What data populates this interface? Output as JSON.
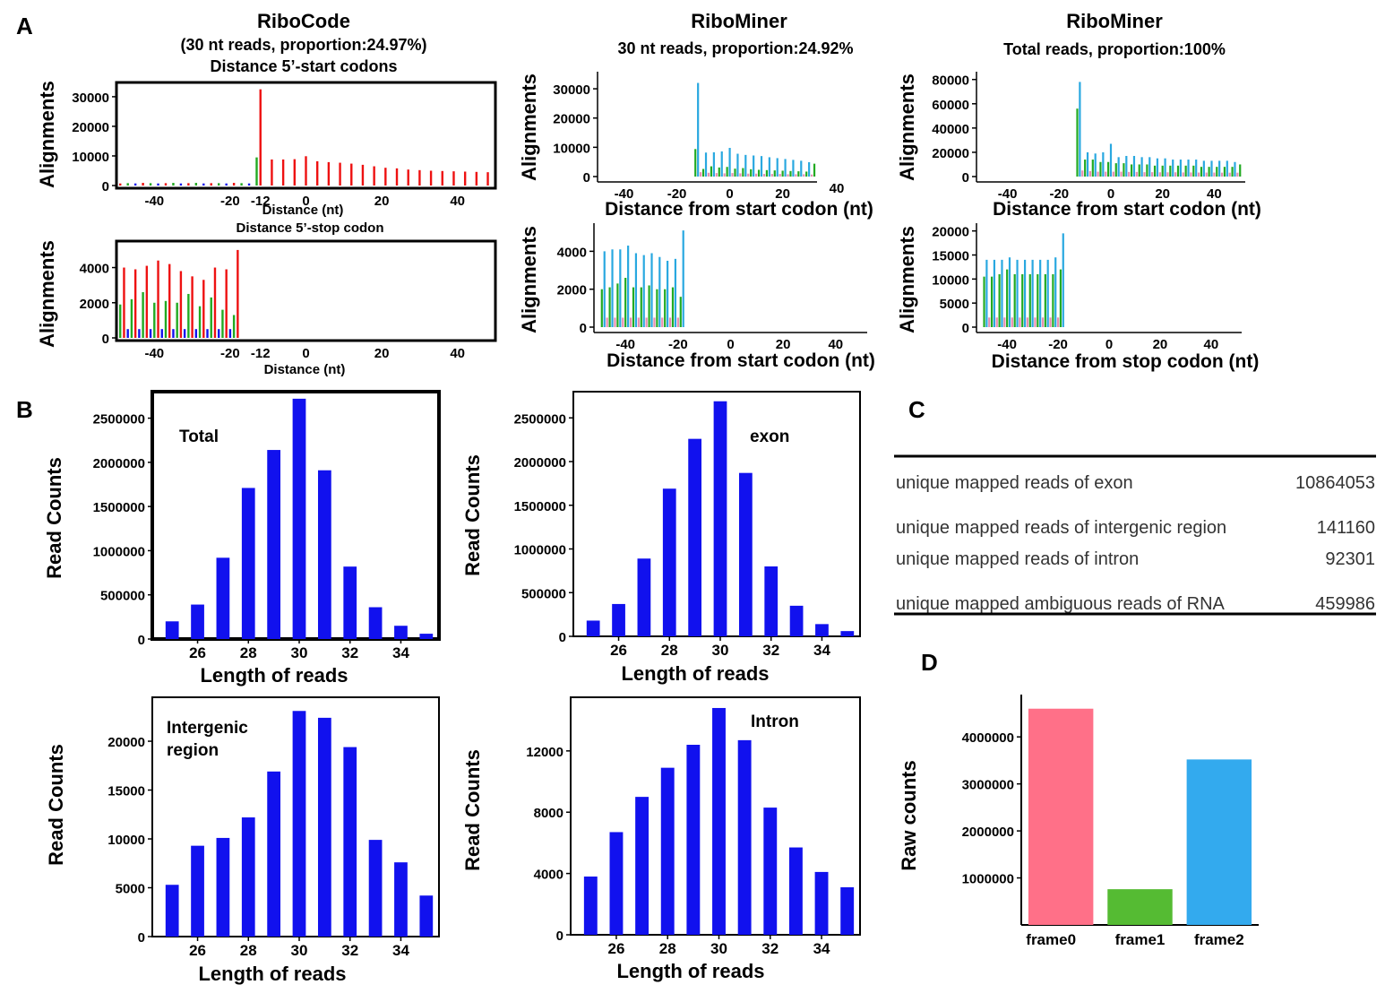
{
  "panel_letters": {
    "A": "A",
    "B": "B",
    "C": "C",
    "D": "D"
  },
  "colors": {
    "red": "#ee1111",
    "green": "#22aa22",
    "blue": "#1111ee",
    "cyan": "#29a8e0",
    "pink": "#e88fb0",
    "bar_blue": "#1111ee",
    "frame0": "#ff7088",
    "frame1": "#55bb33",
    "frame2": "#33aaee"
  },
  "panelA": {
    "ribocode": {
      "title": "RiboCode",
      "subtitle1": "(30 nt reads, proportion:24.97%)",
      "subtitle2": "Distance 5’-start codons",
      "bottom_subtitle": "Distance 5’-stop codon",
      "xlabel": "Distance (nt)",
      "ylabel": "Alignments"
    },
    "riboMinerA": {
      "title": "RiboMiner",
      "subtitle": "30 nt reads, proportion:24.92%",
      "xlabel_top": "Distance from start codon (nt)",
      "xlabel_bottom": "Distance from start codon (nt)",
      "ylabel": "Alignments"
    },
    "riboMinerB": {
      "title": "RiboMiner",
      "subtitle": "Total reads, proportion:100%",
      "xlabel_top": "Distance from start codon (nt)",
      "xlabel_bottom": "Distance from stop codon (nt)",
      "ylabel": "Alignments"
    }
  },
  "chart_data": [
    {
      "id": "A1",
      "type": "bar",
      "xlabel": "Distance (nt)",
      "ylabel": "Alignments",
      "xlim": [
        -50,
        50
      ],
      "ylim": [
        0,
        33000
      ],
      "xticks": [
        -40,
        -20,
        -12,
        0,
        20,
        40
      ],
      "yticks": [
        0,
        10000,
        20000,
        30000
      ],
      "frame_colors": [
        "#ee1111",
        "#22aa22",
        "#1111ee"
      ],
      "series": [
        {
          "name": "frame0",
          "x": [
            -12,
            -9,
            -6,
            -3,
            0,
            3,
            6,
            9,
            12,
            15,
            18,
            21,
            24,
            27,
            30,
            33,
            36,
            39,
            42,
            45,
            48
          ],
          "values": [
            32500,
            8800,
            8800,
            8900,
            9900,
            8200,
            7900,
            7700,
            7400,
            7000,
            6500,
            6000,
            5800,
            5400,
            5200,
            5000,
            4900,
            4800,
            4700,
            4600,
            4500
          ]
        },
        {
          "name": "frame1",
          "x": [
            -13
          ],
          "values": [
            9500
          ]
        },
        {
          "name": "background",
          "x": [
            -49,
            -47,
            -45,
            -43,
            -41,
            -39,
            -37,
            -35,
            -33,
            -31,
            -29,
            -27,
            -25,
            -23,
            -21,
            -19,
            -17,
            -15
          ],
          "values": [
            700,
            800,
            700,
            900,
            800,
            700,
            800,
            900,
            700,
            800,
            900,
            700,
            800,
            800,
            700,
            900,
            800,
            700
          ]
        }
      ]
    },
    {
      "id": "A2",
      "type": "bar",
      "xlabel": "Distance (nt)",
      "ylabel": "Alignments",
      "xlim": [
        -50,
        50
      ],
      "ylim": [
        0,
        5200
      ],
      "xticks": [
        -40,
        -20,
        -12,
        0,
        20,
        40
      ],
      "yticks": [
        0,
        2000,
        4000
      ],
      "series": [
        {
          "name": "frame0",
          "x": [
            -48,
            -45,
            -42,
            -39,
            -36,
            -33,
            -30,
            -27,
            -24,
            -21,
            -18
          ],
          "values": [
            4000,
            3900,
            4100,
            4400,
            4200,
            3800,
            3500,
            3300,
            4000,
            3900,
            5000
          ]
        },
        {
          "name": "frame1",
          "x": [
            -49,
            -46,
            -43,
            -40,
            -37,
            -34,
            -31,
            -28,
            -25,
            -22,
            -19
          ],
          "values": [
            1900,
            2200,
            2600,
            2000,
            2100,
            2000,
            2500,
            1800,
            2300,
            1600,
            1300
          ]
        },
        {
          "name": "frame2",
          "x": [
            -47,
            -44,
            -41,
            -38,
            -35,
            -32,
            -29,
            -26,
            -23,
            -20
          ],
          "values": [
            500,
            500,
            500,
            500,
            500,
            500,
            500,
            500,
            500,
            500
          ]
        }
      ]
    },
    {
      "id": "A3",
      "type": "bar",
      "xlabel": "Distance from start codon (nt)",
      "ylabel": "Alignments",
      "xlim": [
        -50,
        33
      ],
      "ylim": [
        0,
        34000
      ],
      "xticks": [
        -40,
        -20,
        0,
        20
      ],
      "yticks": [
        0,
        10000,
        20000,
        30000
      ],
      "series": [
        {
          "name": "cyan",
          "x": [
            -12,
            -9,
            -6,
            -3,
            0,
            3,
            6,
            9,
            12,
            15,
            18,
            21,
            24,
            27,
            30
          ],
          "values": [
            32000,
            8200,
            8300,
            8600,
            9800,
            7800,
            7400,
            7200,
            7000,
            6600,
            6300,
            6000,
            5700,
            5400,
            4900
          ]
        },
        {
          "name": "green",
          "x": [
            -13,
            -10,
            -7,
            -4,
            -1,
            2,
            5,
            8,
            11,
            14,
            17,
            20,
            23,
            26,
            29,
            32
          ],
          "values": [
            9400,
            2600,
            3500,
            3100,
            3300,
            2700,
            2900,
            2500,
            2300,
            2200,
            2100,
            2000,
            1900,
            1800,
            1700,
            4400
          ]
        },
        {
          "name": "pink",
          "x": [
            -11,
            -8,
            -5,
            -2,
            1,
            4,
            7,
            10,
            13,
            16,
            19,
            22,
            25,
            28,
            31
          ],
          "values": [
            1500,
            1300,
            1200,
            1100,
            1200,
            1100,
            1000,
            1000,
            900,
            900,
            900,
            800,
            800,
            800,
            700
          ]
        }
      ]
    },
    {
      "id": "A4",
      "type": "bar",
      "xlabel": "Distance from start codon (nt)",
      "ylabel": "Alignments",
      "xlim": [
        -52,
        52
      ],
      "ylim": [
        0,
        5200
      ],
      "xticks": [
        -40,
        -20,
        0,
        20,
        40
      ],
      "yticks": [
        0,
        2000,
        4000
      ],
      "series": [
        {
          "name": "cyan",
          "x": [
            -48,
            -45,
            -42,
            -39,
            -36,
            -33,
            -30,
            -27,
            -24,
            -21,
            -18
          ],
          "values": [
            4000,
            4100,
            4100,
            4300,
            3900,
            3800,
            3900,
            3700,
            3500,
            3600,
            5100
          ]
        },
        {
          "name": "green",
          "x": [
            -49,
            -46,
            -43,
            -40,
            -37,
            -34,
            -31,
            -28,
            -25,
            -22,
            -19
          ],
          "values": [
            2000,
            2100,
            2300,
            2600,
            2100,
            2100,
            2200,
            2000,
            2000,
            2100,
            1600
          ]
        },
        {
          "name": "pink",
          "x": [
            -47,
            -44,
            -41,
            -38,
            -35,
            -32,
            -29,
            -26,
            -23,
            -20
          ],
          "values": [
            500,
            500,
            500,
            500,
            500,
            500,
            500,
            500,
            500,
            500
          ]
        }
      ]
    },
    {
      "id": "A5",
      "type": "bar",
      "xlabel": "Distance from start codon (nt)",
      "ylabel": "Alignments",
      "xlim": [
        -52,
        52
      ],
      "ylim": [
        0,
        82000
      ],
      "xticks": [
        -40,
        -20,
        0,
        20,
        40
      ],
      "yticks": [
        0,
        20000,
        40000,
        60000,
        80000
      ],
      "series": [
        {
          "name": "cyan",
          "x": [
            -12,
            -9,
            -6,
            -3,
            0,
            3,
            6,
            9,
            12,
            15,
            18,
            21,
            24,
            27,
            30,
            33,
            36,
            39,
            42,
            45,
            48
          ],
          "values": [
            78000,
            20000,
            19000,
            20000,
            27000,
            16000,
            17000,
            17000,
            16000,
            16000,
            15000,
            15000,
            14000,
            14000,
            14000,
            14000,
            13000,
            13000,
            13000,
            13000,
            12000
          ]
        },
        {
          "name": "green",
          "x": [
            -13,
            -10,
            -7,
            -4,
            -1,
            2,
            5,
            8,
            11,
            14,
            17,
            20,
            23,
            26,
            29,
            32,
            35,
            38,
            41,
            44,
            47,
            50
          ],
          "values": [
            56000,
            14000,
            14000,
            12000,
            12000,
            11000,
            11000,
            10000,
            10000,
            10000,
            9000,
            9000,
            9000,
            9000,
            9000,
            9000,
            8000,
            8000,
            8000,
            8000,
            8000,
            10000
          ]
        },
        {
          "name": "pink",
          "x": [
            -11,
            -8,
            -5,
            -2,
            1,
            4,
            7,
            10,
            13,
            16,
            19,
            22,
            25,
            28,
            31,
            34,
            37,
            40,
            43,
            46,
            49
          ],
          "values": [
            5000,
            4500,
            4000,
            4000,
            4000,
            4000,
            3800,
            3800,
            3600,
            3600,
            3500,
            3500,
            3500,
            3400,
            3400,
            3300,
            3300,
            3300,
            3200,
            3200,
            3200
          ]
        }
      ]
    },
    {
      "id": "A6",
      "type": "bar",
      "xlabel": "Distance from stop codon (nt)",
      "ylabel": "Alignments",
      "xlim": [
        -52,
        52
      ],
      "ylim": [
        0,
        20500
      ],
      "xticks": [
        -40,
        -20,
        0,
        20,
        40
      ],
      "yticks": [
        0,
        5000,
        10000,
        15000,
        20000
      ],
      "series": [
        {
          "name": "cyan",
          "x": [
            -48,
            -45,
            -42,
            -39,
            -36,
            -33,
            -30,
            -27,
            -24,
            -21,
            -18
          ],
          "values": [
            14000,
            14000,
            14000,
            14500,
            14000,
            14000,
            14000,
            14000,
            14000,
            14500,
            19500
          ]
        },
        {
          "name": "green",
          "x": [
            -49,
            -46,
            -43,
            -40,
            -37,
            -34,
            -31,
            -28,
            -25,
            -22,
            -19
          ],
          "values": [
            10500,
            10500,
            11000,
            12000,
            11000,
            11000,
            11000,
            11000,
            11000,
            11000,
            12000
          ]
        },
        {
          "name": "pink",
          "x": [
            -47,
            -44,
            -41,
            -38,
            -35,
            -32,
            -29,
            -26,
            -23,
            -20
          ],
          "values": [
            2000,
            2000,
            2000,
            2000,
            2000,
            2000,
            2000,
            2000,
            2000,
            2000
          ]
        }
      ]
    },
    {
      "id": "B1",
      "type": "bar",
      "label": "Total",
      "xlabel": "Length of reads",
      "ylabel": "Read Counts",
      "ylim": [
        0,
        2800000
      ],
      "categories": [
        25,
        26,
        27,
        28,
        29,
        30,
        31,
        32,
        33,
        34,
        35
      ],
      "xticks": [
        26,
        28,
        30,
        32,
        34
      ],
      "yticks": [
        0,
        500000,
        1000000,
        1500000,
        2000000,
        2500000
      ],
      "values": [
        200000,
        390000,
        920000,
        1710000,
        2140000,
        2720000,
        1910000,
        820000,
        360000,
        150000,
        60000
      ]
    },
    {
      "id": "B2",
      "type": "bar",
      "label": "exon",
      "xlabel": "Length of reads",
      "ylabel": "Read Counts",
      "ylim": [
        0,
        2800000
      ],
      "categories": [
        25,
        26,
        27,
        28,
        29,
        30,
        31,
        32,
        33,
        34,
        35
      ],
      "xticks": [
        26,
        28,
        30,
        32,
        34
      ],
      "yticks": [
        0,
        500000,
        1000000,
        1500000,
        2000000,
        2500000
      ],
      "values": [
        180000,
        370000,
        890000,
        1690000,
        2260000,
        2690000,
        1870000,
        800000,
        350000,
        140000,
        60000
      ]
    },
    {
      "id": "B3",
      "type": "bar",
      "label": "Intergenic region",
      "xlabel": "Length of reads",
      "ylabel": "Read Counts",
      "ylim": [
        0,
        24500
      ],
      "categories": [
        25,
        26,
        27,
        28,
        29,
        30,
        31,
        32,
        33,
        34,
        35
      ],
      "xticks": [
        26,
        28,
        30,
        32,
        34
      ],
      "yticks": [
        0,
        5000,
        10000,
        15000,
        20000
      ],
      "values": [
        5300,
        9300,
        10100,
        12200,
        16900,
        23100,
        22400,
        19400,
        9900,
        7600,
        4200
      ]
    },
    {
      "id": "B4",
      "type": "bar",
      "label": "Intron",
      "xlabel": "Length of reads",
      "ylabel": "Read Counts",
      "ylim": [
        0,
        15500
      ],
      "categories": [
        25,
        26,
        27,
        28,
        29,
        30,
        31,
        32,
        33,
        34,
        35
      ],
      "xticks": [
        26,
        28,
        30,
        32,
        34
      ],
      "yticks": [
        0,
        4000,
        8000,
        12000
      ],
      "values": [
        3800,
        6700,
        9000,
        10900,
        12400,
        14800,
        12700,
        8300,
        5700,
        4100,
        3100
      ]
    },
    {
      "id": "D",
      "type": "bar",
      "xlabel": "",
      "ylabel": "Raw counts",
      "ylim": [
        0,
        4900000
      ],
      "categories": [
        "frame0",
        "frame1",
        "frame2"
      ],
      "yticks": [
        1000000,
        2000000,
        3000000,
        4000000
      ],
      "values": [
        4600000,
        760000,
        3520000
      ]
    },
    {
      "id": "C",
      "type": "table",
      "rows": [
        {
          "label": "unique mapped reads of exon",
          "value": "10864053"
        },
        {
          "label": "unique mapped reads of intergenic region",
          "value": "141160"
        },
        {
          "label": "unique mapped reads of intron",
          "value": "92301"
        },
        {
          "label": "unique mapped ambiguous reads of RNA",
          "value": "459986"
        }
      ]
    }
  ]
}
